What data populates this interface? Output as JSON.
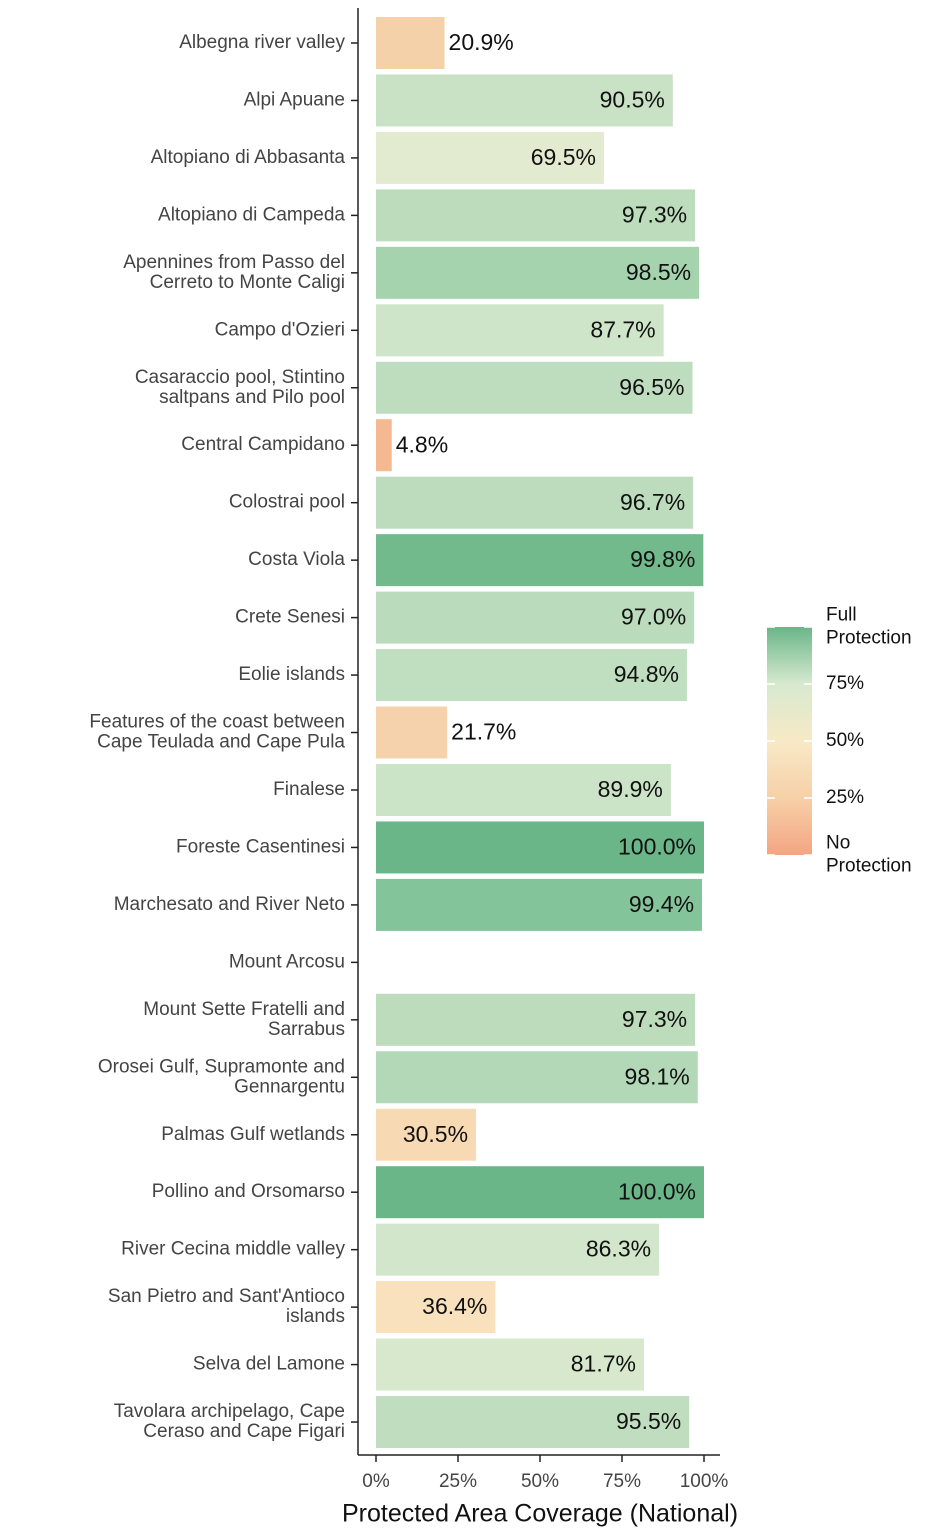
{
  "chart_data": {
    "type": "barh",
    "x_label": "Protected Area Coverage (National)",
    "categories": [
      "Albegna river valley",
      "Alpi Apuane",
      "Altopiano di Abbasanta",
      "Altopiano di Campeda",
      "Apennines from Passo del\nCerreto to Monte Caligi",
      "Campo d'Ozieri",
      "Casaraccio pool, Stintino\nsaltpans and Pilo pool",
      "Central Campidano",
      "Colostrai pool",
      "Costa Viola",
      "Crete Senesi",
      "Eolie islands",
      "Features of the coast between\nCape Teulada and Cape Pula",
      "Finalese",
      "Foreste Casentinesi",
      "Marchesato and River Neto",
      "Mount Arcosu",
      "Mount Sette Fratelli and\nSarrabus",
      "Orosei Gulf, Supramonte and\nGennargentu",
      "Palmas Gulf wetlands",
      "Pollino and Orsomarso",
      "River Cecina middle valley",
      "San Pietro and Sant'Antioco\nislands",
      "Selva del Lamone",
      "Tavolara archipelago, Cape\nCeraso and Cape Figari"
    ],
    "values": [
      20.9,
      90.5,
      69.5,
      97.3,
      98.5,
      87.7,
      96.5,
      4.8,
      96.7,
      99.8,
      97.0,
      94.8,
      21.7,
      89.9,
      100.0,
      99.4,
      null,
      97.3,
      98.1,
      30.5,
      100.0,
      86.3,
      36.4,
      81.7,
      95.5
    ],
    "value_labels": [
      "20.9%",
      "90.5%",
      "69.5%",
      "97.3%",
      "98.5%",
      "87.7%",
      "96.5%",
      "4.8%",
      "96.7%",
      "99.8%",
      "97.0%",
      "94.8%",
      "21.7%",
      "89.9%",
      "100.0%",
      "99.4%",
      null,
      "97.3%",
      "98.1%",
      "30.5%",
      "100.0%",
      "86.3%",
      "36.4%",
      "81.7%",
      "95.5%"
    ],
    "colors": [
      "#f5d1aa",
      "#c9e2c6",
      "#e2ebd0",
      "#bcdcbc",
      "#a5d3ad",
      "#cfe5c9",
      "#bedcbe",
      "#f4b990",
      "#bddcbd",
      "#72ba8c",
      "#badbbc",
      "#c0dec0",
      "#f5d2ab",
      "#cbe3c7",
      "#6ab689",
      "#84c49b",
      null,
      "#bcdcbc",
      "#b3d8b7",
      "#f7dab3",
      "#6ab689",
      "#d1e6ca",
      "#f8e1bc",
      "#d8e8cd",
      "#c0ddbf"
    ],
    "xlim": [
      0,
      100
    ],
    "xticks": [
      {
        "value": 0,
        "label": "0%"
      },
      {
        "value": 25,
        "label": "25%"
      },
      {
        "value": 50,
        "label": "50%"
      },
      {
        "value": 75,
        "label": "75%"
      },
      {
        "value": 100,
        "label": "100%"
      }
    ],
    "legend": {
      "position": "right",
      "lim": [
        0,
        100
      ],
      "ticks": [
        {
          "value": 100,
          "label": "Full\nProtection"
        },
        {
          "value": 75,
          "label": "75%"
        },
        {
          "value": 50,
          "label": "50%"
        },
        {
          "value": 25,
          "label": "25%"
        },
        {
          "value": 0,
          "label": "No\nProtection"
        }
      ],
      "gradient": [
        {
          "value": 0,
          "color": "#f4a582"
        },
        {
          "value": 25,
          "color": "#f6d0a8"
        },
        {
          "value": 50,
          "color": "#f8e9c6"
        },
        {
          "value": 75,
          "color": "#d7e9cf"
        },
        {
          "value": 100,
          "color": "#6ab689"
        }
      ]
    }
  }
}
